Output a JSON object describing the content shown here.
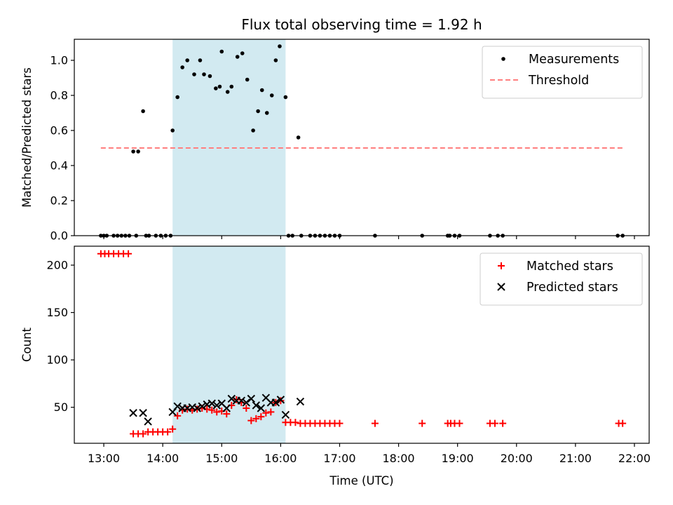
{
  "chart_data": [
    {
      "type": "scatter",
      "title": "Flux total observing time = 1.92 h",
      "xlabel": "",
      "ylabel": "Matched/Predicted stars",
      "xlim": [
        "12:30",
        "22:15"
      ],
      "ylim": [
        0,
        1.12
      ],
      "yticks": [
        "0.0",
        "0.2",
        "0.4",
        "0.6",
        "0.8",
        "1.0"
      ],
      "shaded_interval": [
        "14:10",
        "16:05"
      ],
      "shade_color": "#add8e6",
      "legend_position": "top-right",
      "series": [
        {
          "name": "Measurements",
          "marker": "dot",
          "color": "#000000",
          "x": [
            "12:57",
            "13:00",
            "13:03",
            "13:10",
            "13:14",
            "13:18",
            "13:22",
            "13:26",
            "13:30",
            "13:33",
            "13:35",
            "13:40",
            "13:43",
            "13:46",
            "13:53",
            "13:58",
            "14:03",
            "14:08",
            "14:10",
            "14:15",
            "14:20",
            "14:25",
            "14:32",
            "14:38",
            "14:42",
            "14:48",
            "14:54",
            "14:58",
            "15:00",
            "15:06",
            "15:10",
            "15:16",
            "15:21",
            "15:26",
            "15:32",
            "15:37",
            "15:41",
            "15:46",
            "15:51",
            "15:55",
            "15:59",
            "16:05",
            "16:08",
            "16:12",
            "16:18",
            "16:21",
            "16:30",
            "16:35",
            "16:40",
            "16:45",
            "16:50",
            "16:55",
            "17:00",
            "17:36",
            "18:24",
            "18:50",
            "18:52",
            "18:57",
            "19:02",
            "19:33",
            "19:41",
            "19:46",
            "21:43",
            "21:48"
          ],
          "y": [
            0,
            0,
            0,
            0,
            0,
            0,
            0,
            0,
            0.48,
            0,
            0.48,
            0.71,
            0,
            0,
            0,
            0,
            0,
            0,
            0.6,
            0.79,
            0.96,
            1.0,
            0.92,
            1.0,
            0.92,
            0.91,
            0.84,
            0.85,
            1.05,
            0.82,
            0.85,
            1.02,
            1.04,
            0.89,
            0.6,
            0.71,
            0.83,
            0.7,
            0.8,
            1.0,
            1.08,
            0.79,
            0,
            0,
            0.56,
            0,
            0,
            0,
            0,
            0,
            0,
            0,
            0,
            0,
            0,
            0,
            0,
            0,
            0,
            0,
            0,
            0,
            0,
            0
          ]
        },
        {
          "name": "Threshold",
          "style": "dashed",
          "color": "#ff7f7f",
          "x": [
            "12:57",
            "21:50"
          ],
          "y": [
            0.5,
            0.5
          ]
        }
      ]
    },
    {
      "type": "scatter",
      "xlabel": "Time (UTC)",
      "ylabel": "Count",
      "xlim": [
        "12:30",
        "22:15"
      ],
      "ylim": [
        12,
        220
      ],
      "yticks": [
        "50",
        "100",
        "150",
        "200"
      ],
      "xticks": [
        "13:00",
        "14:00",
        "15:00",
        "16:00",
        "17:00",
        "18:00",
        "19:00",
        "20:00",
        "21:00",
        "22:00"
      ],
      "shaded_interval": [
        "14:10",
        "16:05"
      ],
      "shade_color": "#add8e6",
      "legend_position": "top-right",
      "series": [
        {
          "name": "Matched stars",
          "marker": "plus",
          "color": "#ff0000",
          "x": [
            "12:57",
            "13:01",
            "13:05",
            "13:10",
            "13:15",
            "13:20",
            "13:25",
            "13:30",
            "13:35",
            "13:40",
            "13:45",
            "13:50",
            "13:55",
            "14:00",
            "14:05",
            "14:10",
            "14:15",
            "14:20",
            "14:25",
            "14:30",
            "14:35",
            "14:40",
            "14:45",
            "14:50",
            "14:55",
            "15:00",
            "15:05",
            "15:10",
            "15:15",
            "15:20",
            "15:25",
            "15:30",
            "15:35",
            "15:40",
            "15:45",
            "15:50",
            "15:55",
            "16:00",
            "16:05",
            "16:10",
            "16:15",
            "16:20",
            "16:25",
            "16:30",
            "16:35",
            "16:40",
            "16:45",
            "16:50",
            "16:55",
            "17:00",
            "17:36",
            "18:24",
            "18:50",
            "18:53",
            "18:57",
            "19:02",
            "19:33",
            "19:38",
            "19:46",
            "21:44",
            "21:48"
          ],
          "y": [
            212,
            212,
            212,
            212,
            212,
            212,
            212,
            22,
            22,
            22,
            24,
            24,
            24,
            24,
            24,
            27,
            41,
            47,
            48,
            47,
            48,
            49,
            48,
            47,
            45,
            46,
            43,
            52,
            58,
            55,
            49,
            36,
            38,
            40,
            44,
            45,
            55,
            57,
            34,
            34,
            34,
            33,
            33,
            33,
            33,
            33,
            33,
            33,
            33,
            33,
            33,
            33,
            33,
            33,
            33,
            33,
            33,
            33,
            33,
            33,
            33
          ]
        },
        {
          "name": "Predicted stars",
          "marker": "cross",
          "color": "#000000",
          "x": [
            "13:30",
            "13:40",
            "13:45",
            "14:10",
            "14:15",
            "14:20",
            "14:25",
            "14:30",
            "14:35",
            "14:40",
            "14:45",
            "14:50",
            "14:55",
            "15:00",
            "15:05",
            "15:10",
            "15:15",
            "15:20",
            "15:25",
            "15:30",
            "15:35",
            "15:40",
            "15:45",
            "15:50",
            "15:55",
            "16:00",
            "16:05",
            "16:20"
          ],
          "y": [
            44,
            44,
            35,
            45,
            51,
            49,
            49,
            50,
            49,
            51,
            53,
            54,
            52,
            54,
            49,
            59,
            57,
            57,
            55,
            59,
            52,
            49,
            60,
            55,
            55,
            58,
            42,
            56
          ]
        }
      ]
    }
  ]
}
